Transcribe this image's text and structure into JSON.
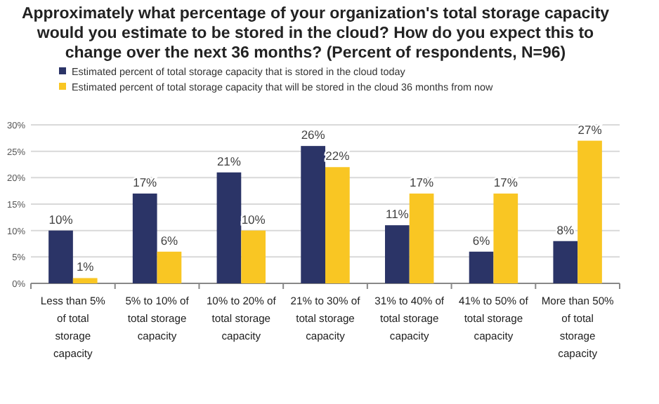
{
  "chart_data": {
    "type": "bar",
    "title": "Approximately what percentage of your organization's total storage capacity would you estimate to be stored in the cloud? How do you expect this to change over the next 36 months? (Percent of respondents, N=96)",
    "categories": [
      "Less than 5% of total storage capacity",
      "5% to 10% of total storage capacity",
      "10% to 20% of total storage capacity",
      "21% to 30% of total storage capacity",
      "31% to 40% of total storage capacity",
      "41% to 50% of total storage capacity",
      "More than 50% of total storage capacity"
    ],
    "series": [
      {
        "name": "Estimated percent of total storage capacity that is stored in the cloud today",
        "color": "#2b3467",
        "values": [
          10,
          17,
          21,
          26,
          11,
          6,
          8
        ]
      },
      {
        "name": "Estimated percent of total storage capacity that will be stored in the cloud 36 months from now",
        "color": "#f9c623",
        "values": [
          1,
          6,
          10,
          22,
          17,
          17,
          27
        ]
      }
    ],
    "value_labels": [
      [
        "10%",
        "17%",
        "21%",
        "26%",
        "11%",
        "6%",
        "8%"
      ],
      [
        "1%",
        "6%",
        "10%",
        "22%",
        "17%",
        "17%",
        "27%"
      ]
    ],
    "ylim": [
      0,
      30
    ],
    "yticks": [
      {
        "value": 0,
        "label": "0%"
      },
      {
        "value": 5,
        "label": "5%"
      },
      {
        "value": 10,
        "label": "10%"
      },
      {
        "value": 15,
        "label": "15%"
      },
      {
        "value": 20,
        "label": "20%"
      },
      {
        "value": 25,
        "label": "25%"
      },
      {
        "value": 30,
        "label": "30%"
      }
    ],
    "grid": "y",
    "legend": "top left"
  }
}
